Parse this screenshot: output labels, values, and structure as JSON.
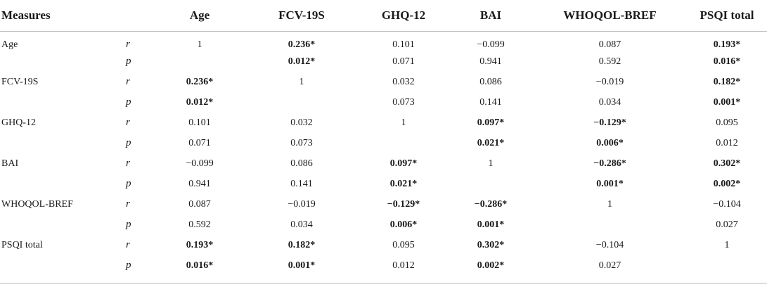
{
  "table": {
    "headers": {
      "measures": "Measures",
      "stat": "",
      "columns": [
        "Age",
        "FCV-19S",
        "GHQ-12",
        "BAI",
        "WHOQOL-BREF",
        "PSQI total"
      ]
    },
    "rows": [
      {
        "measure": "Age",
        "stat": "r",
        "cells": [
          {
            "text": "1",
            "bold": false
          },
          {
            "text": "0.236*",
            "bold": true
          },
          {
            "text": "0.101",
            "bold": false
          },
          {
            "text": "−0.099",
            "bold": false
          },
          {
            "text": "0.087",
            "bold": false
          },
          {
            "text": "0.193*",
            "bold": true
          }
        ]
      },
      {
        "measure": "",
        "stat": "p",
        "cells": [
          {
            "text": "",
            "bold": false
          },
          {
            "text": "0.012*",
            "bold": true
          },
          {
            "text": "0.071",
            "bold": false
          },
          {
            "text": "0.941",
            "bold": false
          },
          {
            "text": "0.592",
            "bold": false
          },
          {
            "text": "0.016*",
            "bold": true
          }
        ]
      },
      {
        "measure": "FCV-19S",
        "stat": "r",
        "cells": [
          {
            "text": "0.236*",
            "bold": true
          },
          {
            "text": "1",
            "bold": false
          },
          {
            "text": "0.032",
            "bold": false
          },
          {
            "text": "0.086",
            "bold": false
          },
          {
            "text": "−0.019",
            "bold": false
          },
          {
            "text": "0.182*",
            "bold": true
          }
        ]
      },
      {
        "measure": "",
        "stat": "p",
        "cells": [
          {
            "text": "0.012*",
            "bold": true
          },
          {
            "text": "",
            "bold": false
          },
          {
            "text": "0.073",
            "bold": false
          },
          {
            "text": "0.141",
            "bold": false
          },
          {
            "text": "0.034",
            "bold": false
          },
          {
            "text": "0.001*",
            "bold": true
          }
        ]
      },
      {
        "measure": "GHQ-12",
        "stat": "r",
        "cells": [
          {
            "text": "0.101",
            "bold": false
          },
          {
            "text": "0.032",
            "bold": false
          },
          {
            "text": "1",
            "bold": false
          },
          {
            "text": "0.097*",
            "bold": true
          },
          {
            "text": "−0.129*",
            "bold": true
          },
          {
            "text": "0.095",
            "bold": false
          }
        ]
      },
      {
        "measure": "",
        "stat": "p",
        "cells": [
          {
            "text": "0.071",
            "bold": false
          },
          {
            "text": "0.073",
            "bold": false
          },
          {
            "text": "",
            "bold": false
          },
          {
            "text": "0.021*",
            "bold": true
          },
          {
            "text": "0.006*",
            "bold": true
          },
          {
            "text": "0.012",
            "bold": false
          }
        ]
      },
      {
        "measure": "BAI",
        "stat": "r",
        "cells": [
          {
            "text": "−0.099",
            "bold": false
          },
          {
            "text": "0.086",
            "bold": false
          },
          {
            "text": "0.097*",
            "bold": true
          },
          {
            "text": "1",
            "bold": false
          },
          {
            "text": "−0.286*",
            "bold": true
          },
          {
            "text": "0.302*",
            "bold": true
          }
        ]
      },
      {
        "measure": "",
        "stat": "p",
        "cells": [
          {
            "text": "0.941",
            "bold": false
          },
          {
            "text": "0.141",
            "bold": false
          },
          {
            "text": "0.021*",
            "bold": true
          },
          {
            "text": "",
            "bold": false
          },
          {
            "text": "0.001*",
            "bold": true
          },
          {
            "text": "0.002*",
            "bold": true
          }
        ]
      },
      {
        "measure": "WHOQOL-BREF",
        "stat": "r",
        "cells": [
          {
            "text": "0.087",
            "bold": false
          },
          {
            "text": "−0.019",
            "bold": false
          },
          {
            "text": "−0.129*",
            "bold": true
          },
          {
            "text": "−0.286*",
            "bold": true
          },
          {
            "text": "1",
            "bold": false
          },
          {
            "text": "−0.104",
            "bold": false
          }
        ]
      },
      {
        "measure": "",
        "stat": "p",
        "cells": [
          {
            "text": "0.592",
            "bold": false
          },
          {
            "text": "0.034",
            "bold": false
          },
          {
            "text": "0.006*",
            "bold": true
          },
          {
            "text": "0.001*",
            "bold": true
          },
          {
            "text": "",
            "bold": false
          },
          {
            "text": "0.027",
            "bold": false
          }
        ]
      },
      {
        "measure": "PSQI total",
        "stat": "r",
        "cells": [
          {
            "text": "0.193*",
            "bold": true
          },
          {
            "text": "0.182*",
            "bold": true
          },
          {
            "text": "0.095",
            "bold": false
          },
          {
            "text": "0.302*",
            "bold": true
          },
          {
            "text": "−0.104",
            "bold": false
          },
          {
            "text": "1",
            "bold": false
          }
        ]
      },
      {
        "measure": "",
        "stat": "p",
        "cells": [
          {
            "text": "0.016*",
            "bold": true
          },
          {
            "text": "0.001*",
            "bold": true
          },
          {
            "text": "0.012",
            "bold": false
          },
          {
            "text": "0.002*",
            "bold": true
          },
          {
            "text": "0.027",
            "bold": false
          },
          {
            "text": "",
            "bold": false
          }
        ]
      }
    ]
  }
}
